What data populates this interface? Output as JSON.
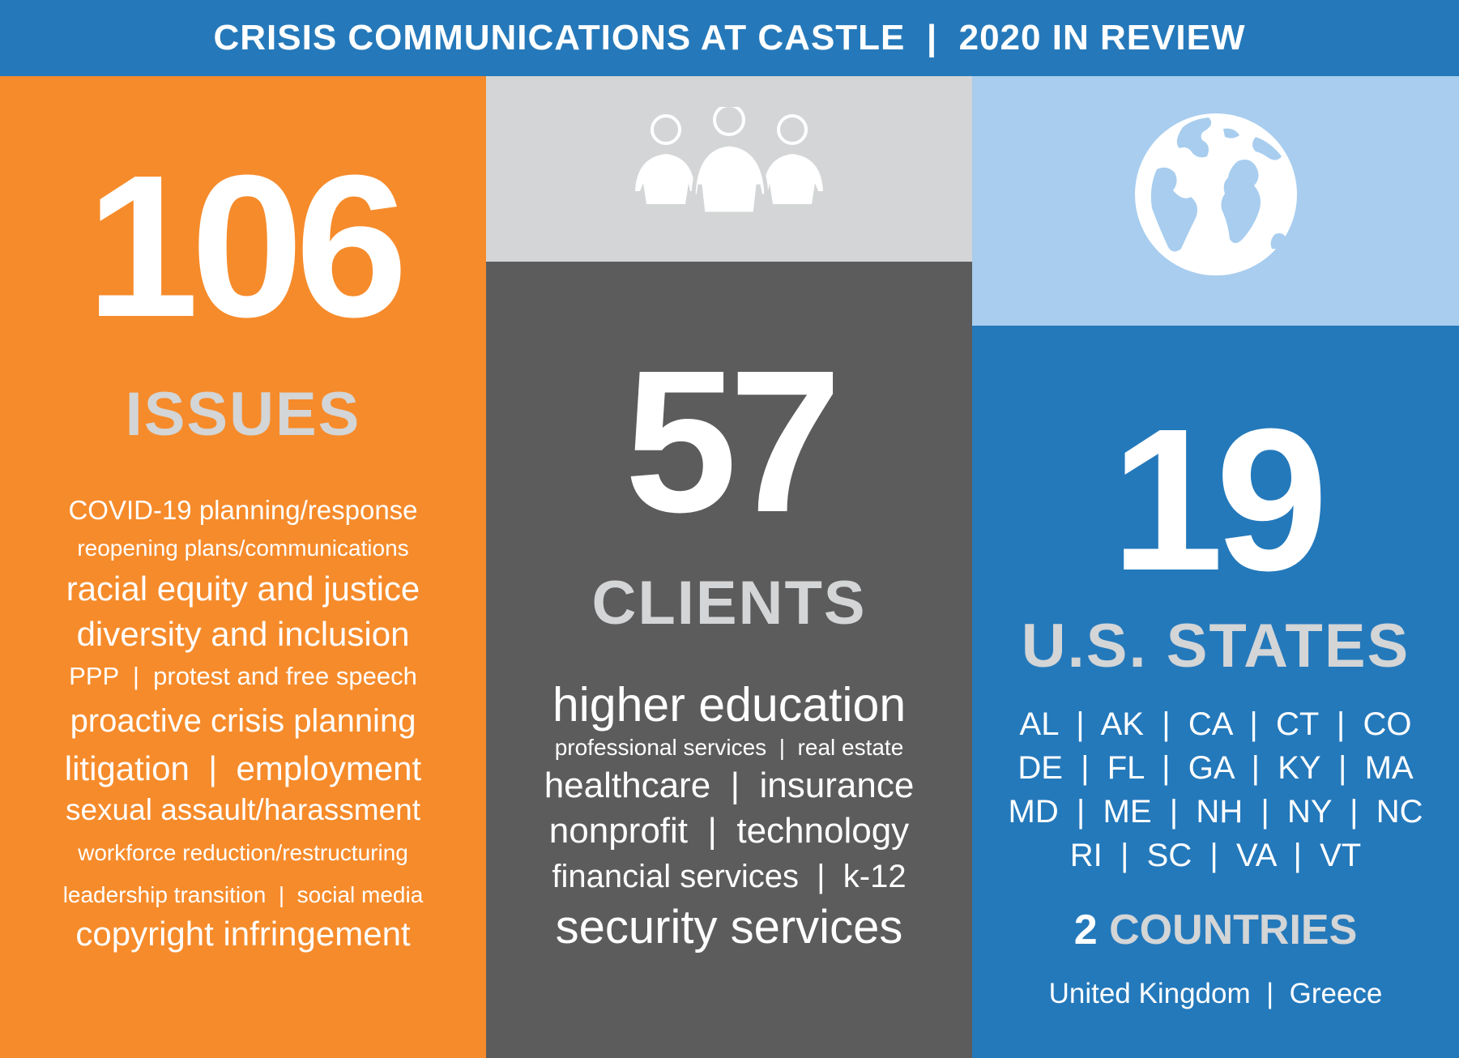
{
  "header": {
    "title": "CRISIS COMMUNICATIONS AT CASTLE  |  2020 IN REVIEW"
  },
  "issues": {
    "count": "106",
    "label": "ISSUES",
    "lines": [
      "COVID-19 planning/response",
      "reopening plans/communications",
      "racial equity and justice",
      "diversity and inclusion",
      "PPP  |  protest and free speech",
      "proactive crisis planning",
      "litigation  |  employment",
      "sexual assault/harassment",
      "workforce reduction/restructuring",
      "leadership transition  |  social media",
      "copyright infringement"
    ]
  },
  "clients": {
    "icon": "people-group-icon",
    "count": "57",
    "label": "CLIENTS",
    "lines": [
      "higher education",
      "professional services  |  real estate",
      "healthcare  |  insurance",
      "nonprofit  |  technology",
      "financial services  |  k-12",
      "security services"
    ]
  },
  "states": {
    "icon": "globe-icon",
    "count": "19",
    "label": "U.S. STATES",
    "lines": [
      "AL  |  AK  |  CA  |  CT  |  CO",
      "DE  |  FL  |  GA  |  KY  |  MA",
      "MD  |  ME  |  NH  |  NY  |  NC",
      "RI  |  SC  |  VA  |  VT"
    ]
  },
  "countries": {
    "count": "2",
    "label": "COUNTRIES",
    "list": "United Kingdom  |  Greece"
  },
  "colors": {
    "blue": "#2579ba",
    "orange": "#f68b2b",
    "dark_gray": "#5c5c5c",
    "light_gray": "#d3d5d6",
    "light_blue": "#a8cdee"
  }
}
